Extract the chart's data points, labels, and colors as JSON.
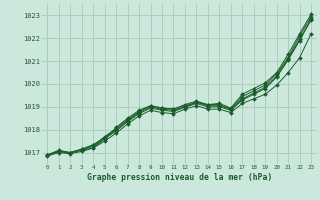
{
  "title": "Graphe pression niveau de la mer (hPa)",
  "background_color": "#cce8dc",
  "grid_color": "#aacfbf",
  "line_color": "#1a5c2a",
  "xlim": [
    -0.5,
    23.5
  ],
  "ylim": [
    1016.5,
    1023.5
  ],
  "yticks": [
    1017,
    1018,
    1019,
    1020,
    1021,
    1022,
    1023
  ],
  "xticks": [
    0,
    1,
    2,
    3,
    4,
    5,
    6,
    7,
    8,
    9,
    10,
    11,
    12,
    13,
    14,
    15,
    16,
    17,
    18,
    19,
    20,
    21,
    22,
    23
  ],
  "series": [
    [
      1016.9,
      1017.1,
      1017.0,
      1017.1,
      1017.2,
      1017.6,
      1018.1,
      1018.5,
      1018.85,
      1019.05,
      1018.95,
      1018.9,
      1019.1,
      1019.25,
      1019.1,
      1019.15,
      1018.95,
      1019.55,
      1019.8,
      1020.05,
      1020.5,
      1021.3,
      1022.2,
      1023.05
    ],
    [
      1016.9,
      1017.05,
      1017.0,
      1017.15,
      1017.3,
      1017.7,
      1018.05,
      1018.45,
      1018.8,
      1019.05,
      1018.95,
      1018.9,
      1019.05,
      1019.2,
      1019.1,
      1019.1,
      1018.9,
      1019.45,
      1019.7,
      1019.95,
      1020.45,
      1021.15,
      1022.1,
      1022.95
    ],
    [
      1016.9,
      1017.05,
      1017.0,
      1017.15,
      1017.35,
      1017.65,
      1018.0,
      1018.4,
      1018.75,
      1019.0,
      1018.9,
      1018.85,
      1019.0,
      1019.2,
      1019.05,
      1019.05,
      1018.9,
      1019.35,
      1019.6,
      1019.85,
      1020.35,
      1021.1,
      1021.95,
      1022.85
    ],
    [
      1016.9,
      1017.05,
      1016.98,
      1017.12,
      1017.28,
      1017.6,
      1017.95,
      1018.35,
      1018.7,
      1018.95,
      1018.85,
      1018.8,
      1018.98,
      1019.15,
      1019.0,
      1019.0,
      1018.85,
      1019.3,
      1019.55,
      1019.8,
      1020.3,
      1021.05,
      1021.9,
      1022.8
    ],
    [
      1016.85,
      1017.0,
      1016.95,
      1017.05,
      1017.2,
      1017.5,
      1017.85,
      1018.25,
      1018.6,
      1018.85,
      1018.75,
      1018.7,
      1018.9,
      1019.05,
      1018.9,
      1018.9,
      1018.75,
      1019.15,
      1019.35,
      1019.55,
      1019.95,
      1020.5,
      1021.15,
      1022.2
    ]
  ]
}
